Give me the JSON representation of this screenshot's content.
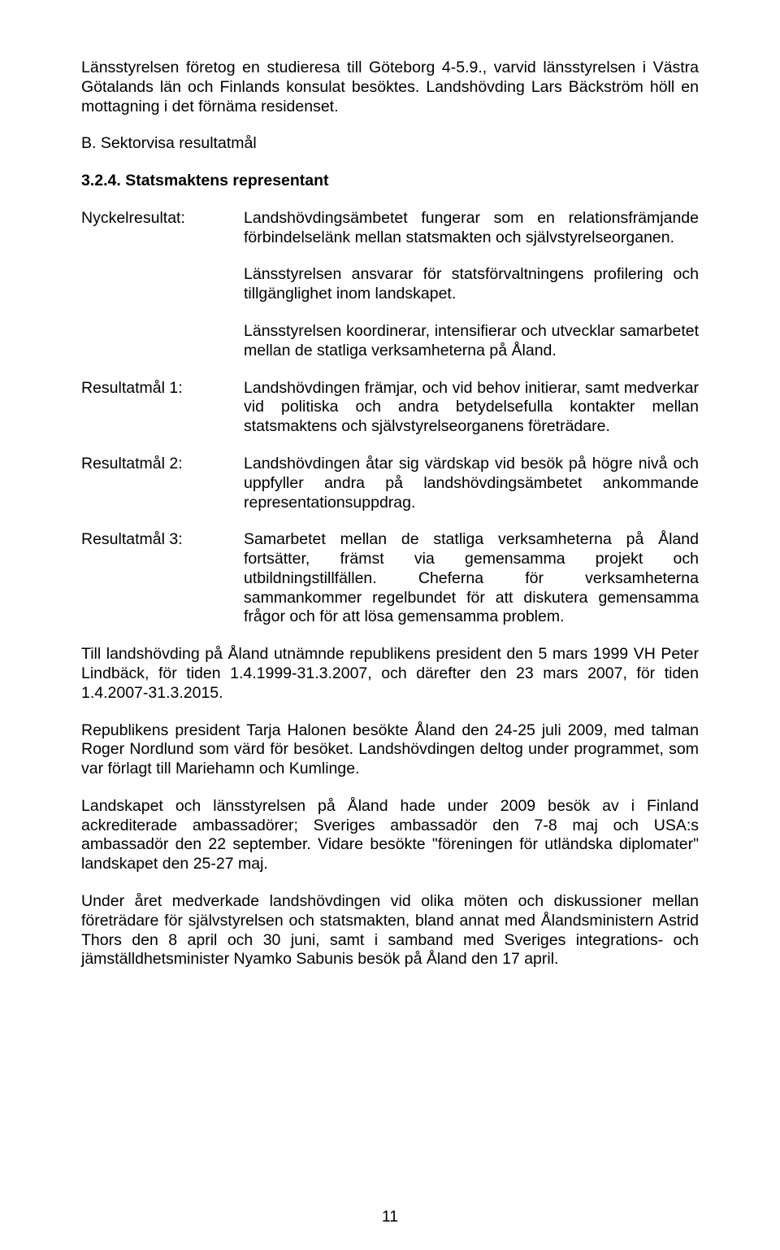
{
  "intro": "Länsstyrelsen företog en studieresa till Göteborg 4-5.9., varvid länsstyrelsen i Västra Götalands län och Finlands konsulat besöktes. Landshövding Lars Bäckström höll en mottagning i det förnäma residenset.",
  "section_b": "B. Sektorvisa resultatmål",
  "heading_324": "3.2.4. Statsmaktens representant",
  "defs": {
    "nyckel": {
      "label": "Nyckelresultat:",
      "p1": "Landshövdingsämbetet fungerar som en relationsfrämjande förbindelselänk mellan statsmakten och självstyrelseorganen.",
      "p2": "Länsstyrelsen ansvarar för statsförvaltningens profilering och tillgänglighet inom landskapet.",
      "p3": "Länsstyrelsen koordinerar, intensifierar och utvecklar samarbetet mellan de statliga verksamheterna på Åland."
    },
    "r1": {
      "label": "Resultatmål 1:",
      "body": "Landshövdingen främjar, och vid behov initierar, samt medverkar vid politiska och andra betydelsefulla kontakter mellan statsmaktens och självstyrelseorganens företrädare."
    },
    "r2": {
      "label": "Resultatmål 2:",
      "body": "Landshövdingen åtar sig värdskap vid besök på högre nivå och uppfyller andra på landshövdingsämbetet ankommande representationsuppdrag."
    },
    "r3": {
      "label": "Resultatmål 3:",
      "body": "Samarbetet mellan de statliga verksamheterna på Åland fortsätter, främst via gemensamma projekt och utbildningstillfällen. Cheferna för verksamheterna sammankommer regelbundet för att diskutera gemensamma frågor och för att lösa gemensamma problem."
    }
  },
  "para1": "Till landshövding på Åland utnämnde republikens president den 5 mars 1999 VH Peter Lindbäck, för tiden 1.4.1999-31.3.2007, och därefter den 23 mars 2007, för tiden 1.4.2007-31.3.2015.",
  "para2": "Republikens president Tarja Halonen besökte Åland den 24-25 juli 2009, med talman Roger Nordlund som värd för besöket. Landshövdingen deltog under programmet, som var förlagt till Mariehamn och Kumlinge.",
  "para3": "Landskapet och länsstyrelsen på Åland hade under 2009 besök av i Finland ackrediterade ambassadörer; Sveriges ambassadör den 7-8 maj och USA:s ambassadör den 22 september. Vidare besökte \"föreningen för utländska diplomater\" landskapet den 25-27 maj.",
  "para4": "Under året medverkade landshövdingen vid olika möten och diskussioner mellan företrädare för självstyrelsen och statsmakten, bland annat med Ålandsministern Astrid Thors den 8 april och 30 juni, samt i samband med Sveriges integrations- och jämställdhetsminister Nyamko Sabunis besök på Åland den 17 april.",
  "page_number": "11"
}
